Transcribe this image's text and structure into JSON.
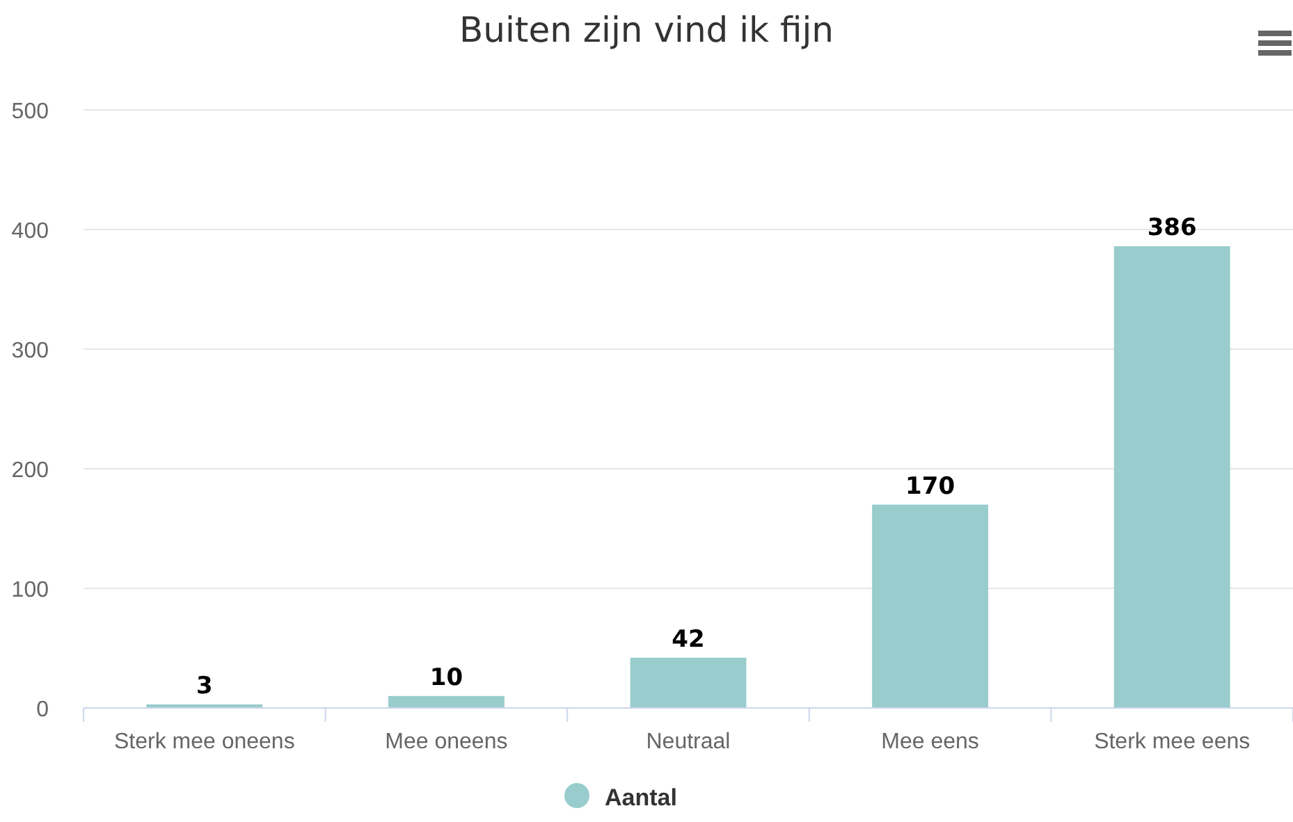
{
  "chart_data": {
    "type": "bar",
    "title": "Buiten zijn vind ik fijn",
    "categories": [
      "Sterk mee oneens",
      "Mee oneens",
      "Neutraal",
      "Mee eens",
      "Sterk mee eens"
    ],
    "series": [
      {
        "name": "Aantal",
        "color": "#99cccc",
        "values": [
          3,
          10,
          42,
          170,
          386
        ]
      }
    ],
    "ylim": [
      0,
      500
    ],
    "yticks": [
      0,
      100,
      200,
      300,
      400,
      500
    ],
    "grid": "y",
    "legend": "bottom",
    "data_labels": true
  }
}
